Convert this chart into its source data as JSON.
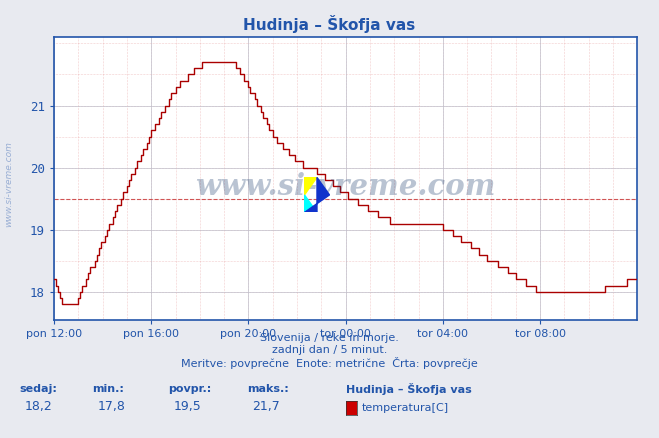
{
  "title": "Hudinja – Škofja vas",
  "title_color": "#2255aa",
  "bg_color": "#e8eaf0",
  "plot_bg_color": "#ffffff",
  "grid_color_minor": "#e8b0b0",
  "grid_color_major": "#c8c8d8",
  "line_color": "#aa0000",
  "avg_line_color": "#cc4444",
  "tick_color": "#2255aa",
  "border_color": "#2255aa",
  "xlim": [
    0,
    288
  ],
  "ylim": [
    17.55,
    22.1
  ],
  "yticks": [
    18,
    19,
    20,
    21
  ],
  "xtick_labels": [
    "pon 12:00",
    "pon 16:00",
    "pon 20:00",
    "tor 00:00",
    "tor 04:00",
    "tor 08:00"
  ],
  "xtick_positions": [
    0,
    48,
    96,
    144,
    192,
    240
  ],
  "avg_value": 19.5,
  "footer_line1": "Slovenija / reke in morje.",
  "footer_line2": "zadnji dan / 5 minut.",
  "footer_line3": "Meritve: povprečne  Enote: metrične  Črta: povprečje",
  "footer_color": "#2255aa",
  "stats_labels": [
    "sedaj:",
    "min.:",
    "povpr.:",
    "maks.:"
  ],
  "stats_values": [
    "18,2",
    "17,8",
    "19,5",
    "21,7"
  ],
  "legend_title": "Hudinja – Škofja vas",
  "legend_item": "temperatura[C]",
  "legend_color": "#cc0000",
  "watermark": "www.si-vreme.com",
  "watermark_color": "#1a3a6a",
  "watermark_alpha": 0.3,
  "sidewatermark_color": "#2255aa",
  "sidewatermark_alpha": 0.4
}
